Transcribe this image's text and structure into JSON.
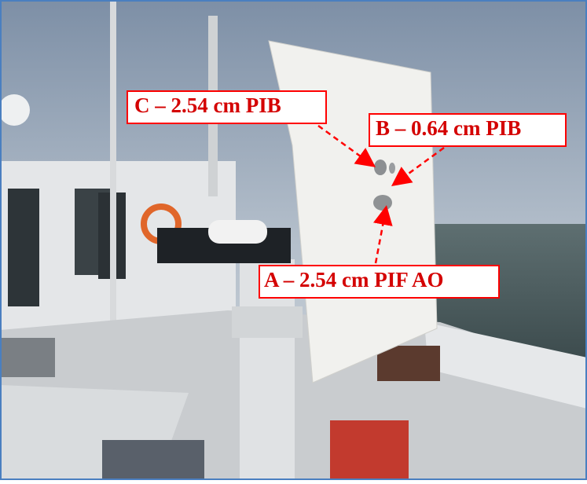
{
  "labels": [
    "C – 2.54 cm PIB",
    "B – 0.64 cm PIB",
    "A – 2.54 cm PIF AO"
  ]
}
